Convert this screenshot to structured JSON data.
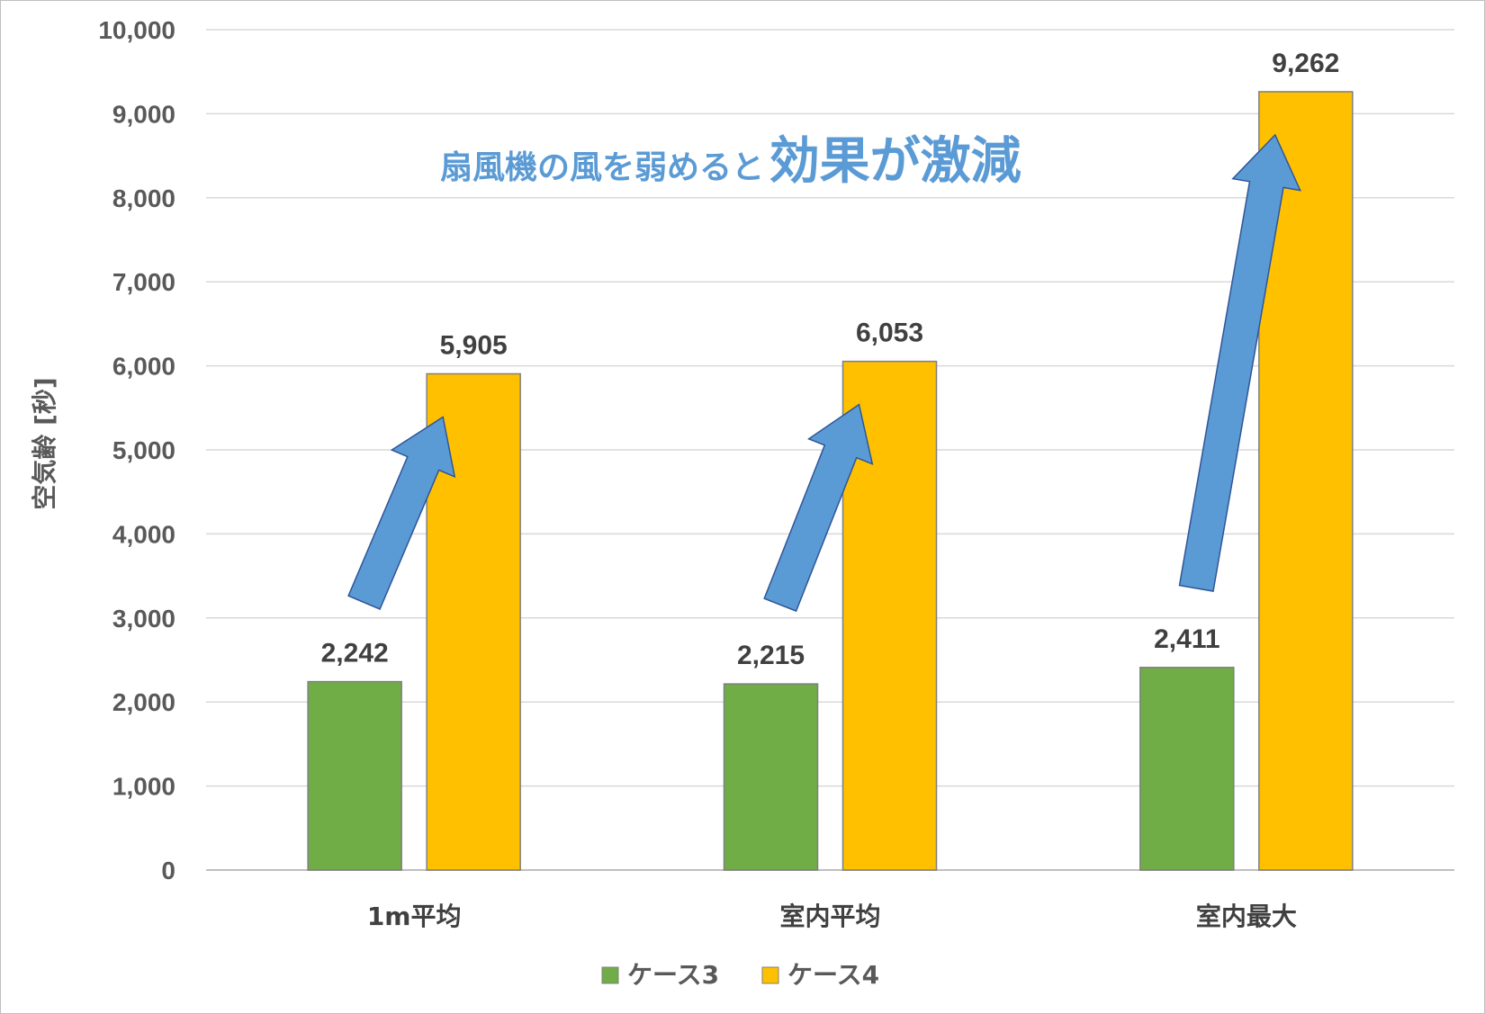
{
  "chart_data": {
    "type": "bar",
    "categories": [
      "1m平均",
      "室内平均",
      "室内最大"
    ],
    "series": [
      {
        "name": "ケース3",
        "color": "#70ad47",
        "values": [
          2242,
          2215,
          2411
        ]
      },
      {
        "name": "ケース4",
        "color": "#ffc000",
        "values": [
          5905,
          6053,
          9262
        ]
      }
    ],
    "ylabel": "空気齢 [秒]",
    "ylim": [
      0,
      10000
    ],
    "ytick_step": 1000,
    "grid": true,
    "legend_position": "bottom",
    "data_labels": [
      [
        "2,242",
        "2,215",
        "2,411"
      ],
      [
        "5,905",
        "6,053",
        "9,262"
      ]
    ]
  },
  "annotation": {
    "prefix": "扇風機の風を弱めると",
    "emphasis": "効果が激減",
    "color": "#5b9bd5"
  }
}
